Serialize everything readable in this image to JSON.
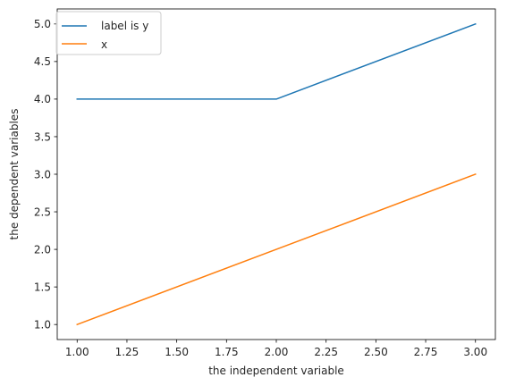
{
  "chart_data": {
    "type": "line",
    "xlabel": "the independent variable",
    "ylabel": "the dependent variables",
    "xlim": [
      0.9,
      3.1
    ],
    "ylim": [
      0.8,
      5.2
    ],
    "x_ticks": [
      "1.00",
      "1.25",
      "1.50",
      "1.75",
      "2.00",
      "2.25",
      "2.50",
      "2.75",
      "3.00"
    ],
    "y_ticks": [
      "1.0",
      "1.5",
      "2.0",
      "2.5",
      "3.0",
      "3.5",
      "4.0",
      "4.5",
      "5.0"
    ],
    "grid": false,
    "legend_position": "top-left",
    "series": [
      {
        "name": "label is y",
        "x": [
          1,
          2,
          3
        ],
        "y": [
          4,
          4,
          5
        ],
        "color": "#1f77b4"
      },
      {
        "name": "x",
        "x": [
          1,
          2,
          3
        ],
        "y": [
          1,
          2,
          3
        ],
        "color": "#ff7f0e"
      }
    ]
  }
}
